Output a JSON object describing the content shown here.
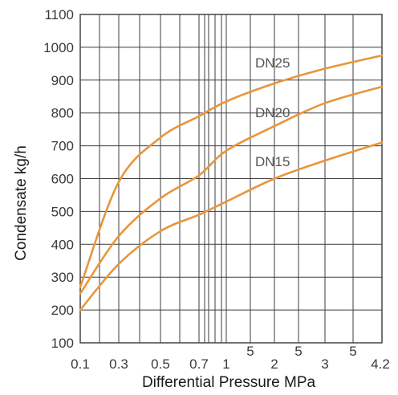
{
  "chart_data": {
    "type": "line",
    "xlabel": "Differential Pressure MPa",
    "ylabel": "Condensate kg/h",
    "ylim": [
      100,
      1100
    ],
    "y_ticks": [
      "100",
      "200",
      "300",
      "400",
      "500",
      "600",
      "700",
      "800",
      "900",
      "1000",
      "1100"
    ],
    "x_ticks_major": [
      "0.1",
      "0.3",
      "0.5",
      "0.7",
      "1",
      "2",
      "3",
      "4.2"
    ],
    "x_ticks_minor": [
      "5",
      "5",
      "5"
    ],
    "x_scale": "custom (compressed, log-like)",
    "grid": true,
    "line_color": "#e8963c",
    "series": [
      {
        "name": "DN25",
        "x": [
          0.1,
          0.3,
          0.5,
          0.7,
          1,
          2,
          3,
          4.2
        ],
        "values": [
          270,
          590,
          725,
          790,
          835,
          890,
          935,
          975
        ]
      },
      {
        "name": "DN20",
        "x": [
          0.1,
          0.3,
          0.5,
          0.7,
          1,
          2,
          3,
          4.2
        ],
        "values": [
          250,
          425,
          540,
          610,
          685,
          760,
          830,
          880
        ]
      },
      {
        "name": "DN15",
        "x": [
          0.1,
          0.3,
          0.5,
          0.7,
          1,
          2,
          3,
          4.2
        ],
        "values": [
          200,
          340,
          440,
          490,
          530,
          600,
          655,
          710
        ]
      }
    ]
  }
}
